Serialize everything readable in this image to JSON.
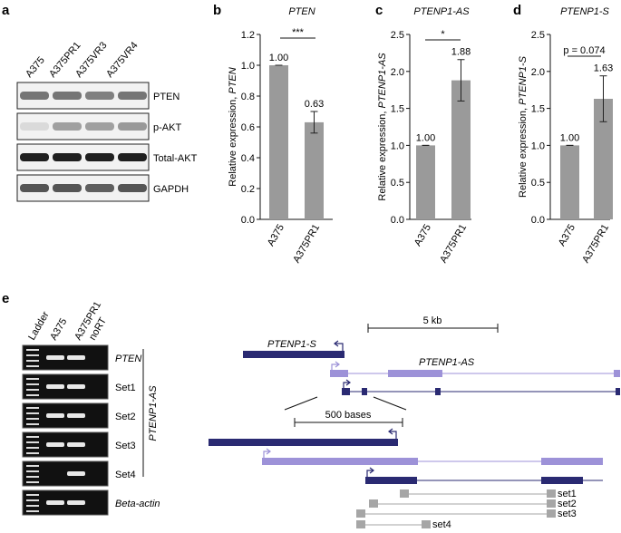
{
  "panel_a": {
    "letter": "a",
    "lanes": [
      "A375",
      "A375PR1",
      "A375VR3",
      "A375VR4"
    ],
    "blots": [
      {
        "label": "PTEN",
        "intensity": [
          0.55,
          0.55,
          0.5,
          0.55
        ]
      },
      {
        "label": "p-AKT",
        "intensity": [
          0.08,
          0.35,
          0.35,
          0.38
        ]
      },
      {
        "label": "Total-AKT",
        "intensity": [
          0.95,
          0.95,
          0.95,
          0.95
        ]
      },
      {
        "label": "GAPDH",
        "intensity": [
          0.7,
          0.7,
          0.65,
          0.7
        ]
      }
    ]
  },
  "chart_data": [
    {
      "letter": "b",
      "type": "bar",
      "title": "PTEN",
      "ylabel_prefix": "Relative expression, ",
      "ylabel_gene": "PTEN",
      "categories": [
        "A375",
        "A375PR1"
      ],
      "values": [
        1.0,
        0.63
      ],
      "value_labels": [
        "1.00",
        "0.63"
      ],
      "errors": [
        0.0,
        0.07
      ],
      "ylim": [
        0,
        1.2
      ],
      "yticks": [
        "0.0",
        "0.2",
        "0.4",
        "0.6",
        "0.8",
        "1.0",
        "1.2"
      ],
      "significance": "***",
      "color": "#9a9a9a"
    },
    {
      "letter": "c",
      "type": "bar",
      "title": "PTENP1-AS",
      "ylabel_prefix": "Relative expression, ",
      "ylabel_gene": "PTENP1-AS",
      "categories": [
        "A375",
        "A375PR1"
      ],
      "values": [
        1.0,
        1.88
      ],
      "value_labels": [
        "1.00",
        "1.88"
      ],
      "errors": [
        0.0,
        0.28
      ],
      "ylim": [
        0,
        2.5
      ],
      "yticks": [
        "0.0",
        "0.5",
        "1.0",
        "1.5",
        "2.0",
        "2.5"
      ],
      "significance": "*",
      "color": "#9a9a9a"
    },
    {
      "letter": "d",
      "type": "bar",
      "title": "PTENP1-S",
      "ylabel_prefix": "Relative expression, ",
      "ylabel_gene": "PTENP1-S",
      "categories": [
        "A375",
        "A375PR1"
      ],
      "values": [
        1.0,
        1.63
      ],
      "value_labels": [
        "1.00",
        "1.63"
      ],
      "errors": [
        0.0,
        0.31
      ],
      "ylim": [
        0,
        2.5
      ],
      "yticks": [
        "0.0",
        "0.5",
        "1.0",
        "1.5",
        "2.0",
        "2.5"
      ],
      "significance": "p = 0.074",
      "color": "#9a9a9a"
    }
  ],
  "panel_e": {
    "letter": "e",
    "lanes": [
      "Ladder",
      "A375",
      "A375PR1",
      "noRT"
    ],
    "gels": [
      {
        "label": "PTEN",
        "italic": true,
        "bands": [
          0,
          1,
          1,
          0
        ]
      },
      {
        "label": "Set1",
        "italic": false,
        "bands": [
          0,
          1,
          1,
          0
        ]
      },
      {
        "label": "Set2",
        "italic": false,
        "bands": [
          0,
          1,
          1,
          0
        ]
      },
      {
        "label": "Set3",
        "italic": false,
        "bands": [
          0,
          1,
          1,
          0
        ]
      },
      {
        "label": "Set4",
        "italic": false,
        "bands": [
          0,
          0,
          1,
          0
        ]
      },
      {
        "label": "Beta-actin",
        "italic": true,
        "bands": [
          0,
          1,
          1,
          0
        ]
      }
    ],
    "bracket_label": "PTENP1-AS",
    "scale_top": "5 kb",
    "scale_zoom": "500 bases",
    "gene_s": "PTENP1-S",
    "gene_as": "PTENP1-AS",
    "primer_sets": [
      "set1",
      "set2",
      "set3",
      "set4"
    ],
    "colors": {
      "dark": "#2a2a72",
      "light": "#9d92d8",
      "primer": "#a6a6a6"
    }
  }
}
